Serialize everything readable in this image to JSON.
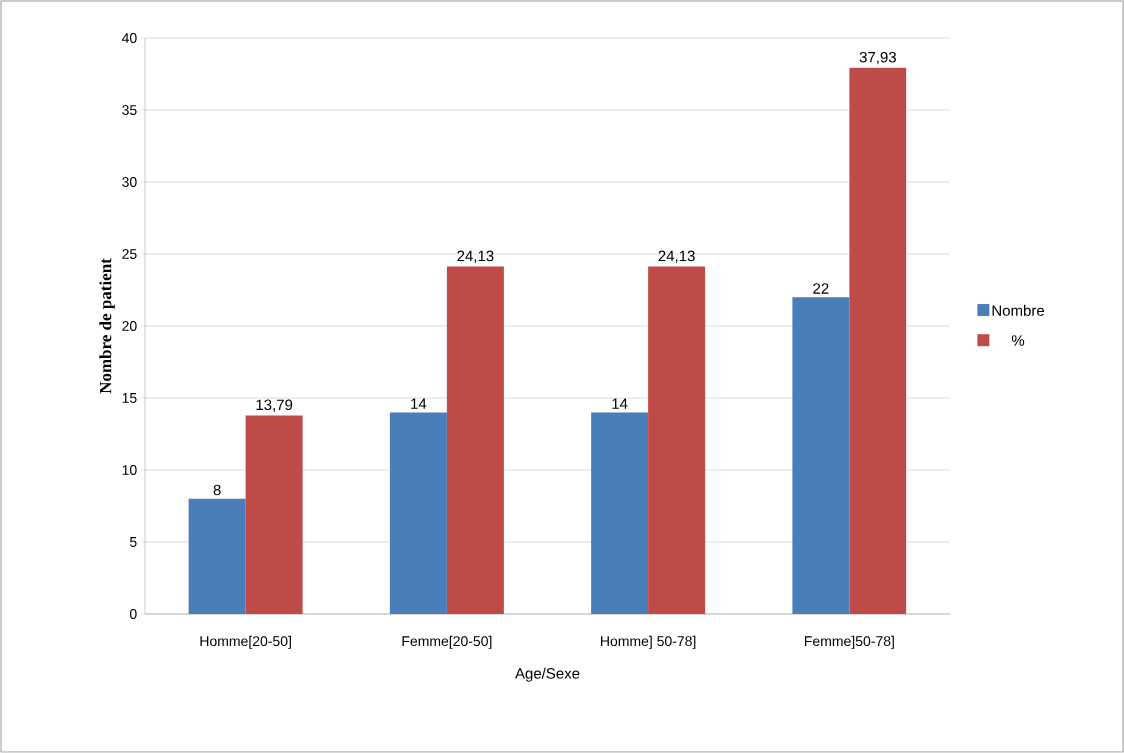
{
  "chart_data": {
    "type": "bar",
    "xlabel": "Age/Sexe",
    "ylabel": "Nombre de patient",
    "categories": [
      "Homme[20-50]",
      "Femme[20-50]",
      "Homme] 50-78]",
      "Femme]50-78]"
    ],
    "series": [
      {
        "name": "Nombre",
        "color": "#4a7ebb",
        "values": [
          8,
          14,
          14,
          22
        ],
        "value_labels": [
          "8",
          "14",
          "14",
          "22"
        ]
      },
      {
        "name": "%",
        "color": "#be4b48",
        "values": [
          13.79,
          24.13,
          24.13,
          37.93
        ],
        "value_labels": [
          "13,79",
          "24,13",
          "24,13",
          "37,93"
        ]
      }
    ],
    "ylim": [
      0,
      40
    ],
    "yticks": [
      0,
      5,
      10,
      15,
      20,
      25,
      30,
      35,
      40
    ],
    "grid": "y",
    "legend": "right"
  }
}
